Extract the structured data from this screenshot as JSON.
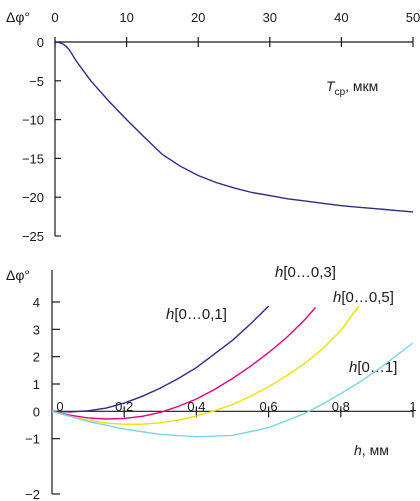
{
  "chart_data": [
    {
      "type": "line",
      "ylabel": "Δφ°",
      "xlabel_prefix": "T",
      "xlabel_sub": "ср",
      "xlabel_suffix": ", мкм",
      "xlim": [
        0,
        50
      ],
      "ylim": [
        -25,
        0
      ],
      "x_ticks": [
        0,
        10,
        20,
        30,
        40,
        50
      ],
      "x_tick_labels": [
        "0",
        "10",
        "20",
        "30",
        "40",
        "50"
      ],
      "y_ticks": [
        0,
        -5,
        -10,
        -15,
        -20,
        -25
      ],
      "y_tick_labels": [
        "0",
        "−5",
        "−10",
        "−15",
        "−20",
        "−25"
      ],
      "grid": false,
      "series": [
        {
          "color": "#2b2d84",
          "x": [
            0,
            0.5,
            1,
            1.5,
            2,
            3,
            5,
            7.5,
            10,
            12.5,
            15,
            17.5,
            20,
            22.5,
            25,
            27.5,
            30,
            32.5,
            35,
            37.5,
            40,
            42.5,
            45,
            47.5,
            50
          ],
          "y": [
            0,
            -0.05,
            -0.2,
            -0.5,
            -1,
            -2.5,
            -5,
            -7.6,
            -10,
            -12.3,
            -14.5,
            -16,
            -17.2,
            -18.1,
            -18.8,
            -19.4,
            -19.8,
            -20.2,
            -20.5,
            -20.8,
            -21.1,
            -21.3,
            -21.5,
            -21.7,
            -21.9
          ]
        }
      ]
    },
    {
      "type": "line",
      "ylabel": "Δφ°",
      "xlabel_prefix": "h",
      "xlabel_suffix": ", мм",
      "xlim": [
        0,
        1
      ],
      "ylim": [
        -2,
        4
      ],
      "x_ticks": [
        0,
        0.2,
        0.4,
        0.6,
        0.8,
        1
      ],
      "x_tick_labels": [
        "0",
        "0,2",
        "0,4",
        "0,6",
        "0,8",
        "1"
      ],
      "y_ticks": [
        4,
        3,
        2,
        1,
        0,
        -1,
        -2
      ],
      "y_tick_labels": [
        "4",
        "3",
        "2",
        "1",
        "0",
        "−1",
        "−2"
      ],
      "grid": false,
      "series": [
        {
          "prefix": "h",
          "name": "[0…0,1]",
          "color": "#2b2d84",
          "x": [
            0,
            0.05,
            0.1,
            0.15,
            0.2,
            0.25,
            0.3,
            0.35,
            0.4,
            0.45,
            0.5,
            0.55,
            0.6
          ],
          "y": [
            0,
            -0.02,
            0.02,
            0.12,
            0.3,
            0.55,
            0.85,
            1.2,
            1.6,
            2.1,
            2.6,
            3.2,
            3.85
          ]
        },
        {
          "prefix": "h",
          "name": "[0…0,3]",
          "color": "#e5007e",
          "x": [
            0,
            0.05,
            0.1,
            0.15,
            0.2,
            0.25,
            0.3,
            0.35,
            0.4,
            0.45,
            0.5,
            0.55,
            0.6,
            0.65,
            0.7,
            0.73
          ],
          "y": [
            0,
            -0.14,
            -0.24,
            -0.28,
            -0.26,
            -0.18,
            -0.04,
            0.18,
            0.45,
            0.8,
            1.2,
            1.65,
            2.15,
            2.7,
            3.35,
            3.8
          ]
        },
        {
          "prefix": "h",
          "name": "[0…0,5]",
          "color": "#f0e000",
          "x": [
            0,
            0.05,
            0.1,
            0.15,
            0.2,
            0.25,
            0.3,
            0.35,
            0.4,
            0.45,
            0.5,
            0.55,
            0.6,
            0.65,
            0.7,
            0.75,
            0.8,
            0.85
          ],
          "y": [
            0,
            -0.18,
            -0.33,
            -0.43,
            -0.47,
            -0.47,
            -0.42,
            -0.32,
            -0.17,
            0.02,
            0.25,
            0.55,
            0.9,
            1.3,
            1.75,
            2.3,
            2.95,
            3.85
          ]
        },
        {
          "prefix": "h",
          "name": "[0…1]",
          "color": "#7fd3e8",
          "x": [
            0,
            0.1,
            0.2,
            0.3,
            0.4,
            0.5,
            0.6,
            0.7,
            0.75,
            0.8,
            0.85,
            0.9,
            0.95,
            1
          ],
          "y": [
            0,
            -0.37,
            -0.65,
            -0.84,
            -0.93,
            -0.88,
            -0.6,
            -0.08,
            0.27,
            0.65,
            1.05,
            1.5,
            2.0,
            2.5
          ]
        }
      ]
    }
  ]
}
